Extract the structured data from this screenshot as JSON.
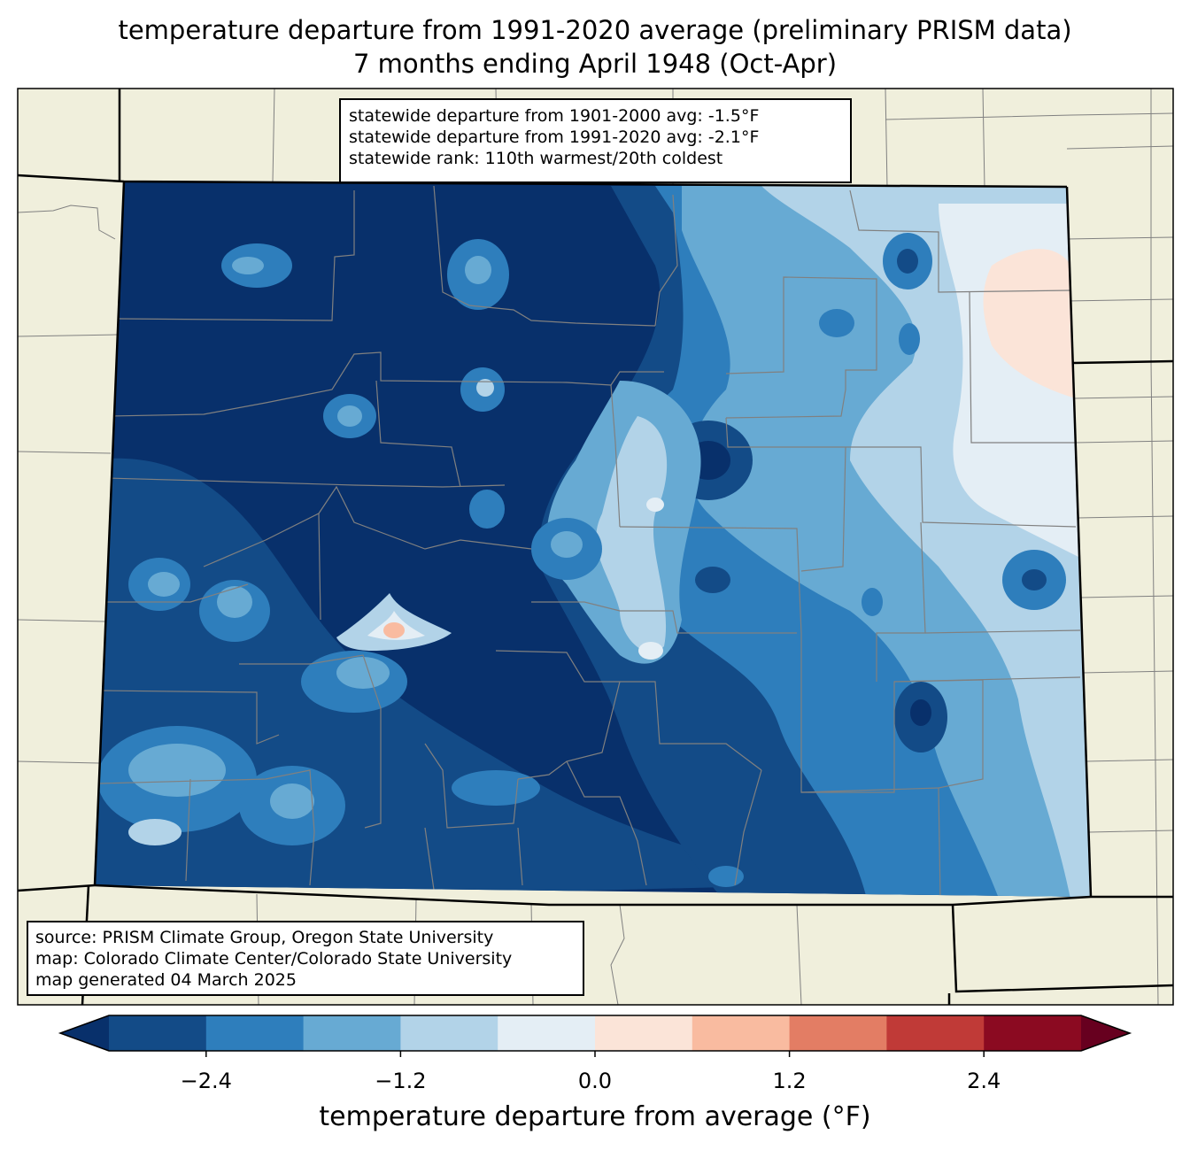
{
  "title": {
    "line1": "temperature departure from 1991-2020 average (preliminary PRISM data)",
    "line2": "7 months ending April 1948 (Oct-Apr)"
  },
  "stats": {
    "line1": "statewide departure from 1901-2000 avg: -1.5°F",
    "line2": "statewide departure from 1991-2020 avg: -2.1°F",
    "line3": "statewide rank: 110th warmest/20th coldest"
  },
  "source": {
    "line1": "source: PRISM Climate Group, Oregon State University",
    "line2": "map: Colorado Climate Center/Colorado State University",
    "line3": "map generated 04 March 2025"
  },
  "colorbar": {
    "label": "temperature departure from average (°F)",
    "ticks": [
      "−2.4",
      "−1.2",
      "0.0",
      "1.2",
      "2.4"
    ],
    "tick_values": [
      -2.4,
      -1.2,
      0.0,
      1.2,
      2.4
    ],
    "range": [
      -3.0,
      3.0
    ],
    "bin_edges": [
      -3.0,
      -2.4,
      -1.8,
      -1.2,
      -0.6,
      0.0,
      0.6,
      1.2,
      1.8,
      2.4,
      3.0
    ],
    "colors": [
      "#08306b",
      "#134b87",
      "#2e7ebc",
      "#67aad3",
      "#b2d3e8",
      "#e4eef5",
      "#fbe4d8",
      "#f9bba0",
      "#e37d64",
      "#c03a37",
      "#8b0a21",
      "#67001f"
    ]
  },
  "map_colors": {
    "background": "#f0efdc",
    "border": "#000000",
    "county_lines": "#808080"
  }
}
